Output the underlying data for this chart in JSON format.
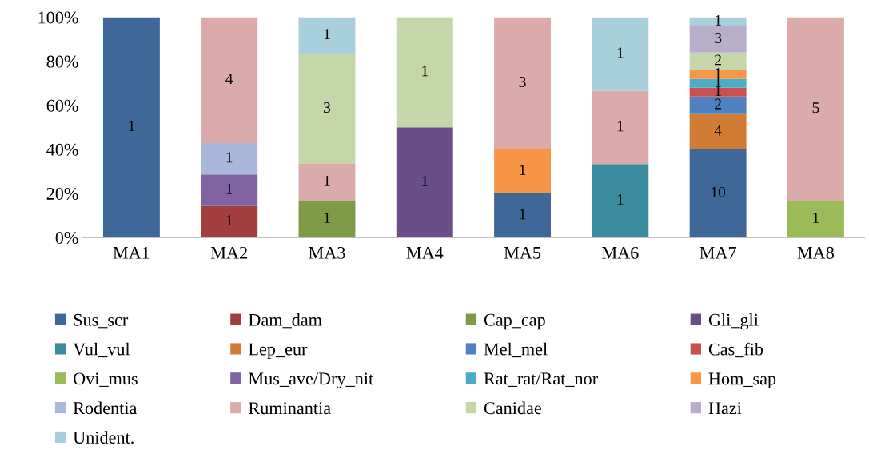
{
  "chart_data": {
    "type": "bar",
    "stacked": true,
    "categories": [
      "MA1",
      "MA2",
      "MA3",
      "MA4",
      "MA5",
      "MA6",
      "MA7",
      "MA8"
    ],
    "ylim": [
      0,
      100
    ],
    "yticks": [
      {
        "value": 0,
        "label": "0%"
      },
      {
        "value": 20,
        "label": "20%"
      },
      {
        "value": 40,
        "label": "40%"
      },
      {
        "value": 60,
        "label": "60%"
      },
      {
        "value": 80,
        "label": "80%"
      },
      {
        "value": 100,
        "label": "100%"
      }
    ],
    "grid": false,
    "legend": "bottom",
    "series": [
      {
        "name": "Sus_scr",
        "color": "#3f6899",
        "values": [
          100,
          null,
          null,
          null,
          20,
          null,
          40,
          null
        ]
      },
      {
        "name": "Dam_dam",
        "color": "#a23f3e",
        "values": [
          null,
          14.3,
          null,
          null,
          null,
          null,
          null,
          null
        ]
      },
      {
        "name": "Cap_cap",
        "color": "#7e9a47",
        "values": [
          null,
          null,
          16.7,
          null,
          null,
          null,
          null,
          null
        ]
      },
      {
        "name": "Gli_gli",
        "color": "#6a4e87",
        "values": [
          null,
          null,
          null,
          50,
          null,
          null,
          null,
          null
        ]
      },
      {
        "name": "Vul_vul",
        "color": "#3a8b9c",
        "values": [
          null,
          null,
          null,
          null,
          null,
          33.3,
          null,
          null
        ]
      },
      {
        "name": "Lep_eur",
        "color": "#d07c34",
        "values": [
          null,
          null,
          null,
          null,
          null,
          null,
          16,
          null
        ]
      },
      {
        "name": "Mel_mel",
        "color": "#4f80c0",
        "values": [
          null,
          null,
          null,
          null,
          null,
          null,
          8,
          null
        ]
      },
      {
        "name": "Cas_fib",
        "color": "#c9504f",
        "values": [
          null,
          null,
          null,
          null,
          null,
          null,
          4,
          null
        ]
      },
      {
        "name": "Ovi_mus",
        "color": "#9bbb59",
        "values": [
          null,
          null,
          null,
          null,
          null,
          null,
          null,
          16.7
        ]
      },
      {
        "name": "Mus_ave/Dry_nit",
        "color": "#8064a2",
        "values": [
          null,
          14.3,
          null,
          null,
          null,
          null,
          null,
          null
        ]
      },
      {
        "name": "Rat_rat/Rat_nor",
        "color": "#4bacc6",
        "values": [
          null,
          null,
          null,
          null,
          null,
          null,
          4,
          null
        ]
      },
      {
        "name": "Hom_sap",
        "color": "#f79646",
        "values": [
          null,
          null,
          null,
          null,
          20,
          null,
          4,
          null
        ]
      },
      {
        "name": "Rodentia",
        "color": "#a9b8d8",
        "values": [
          null,
          14.3,
          null,
          null,
          null,
          null,
          null,
          null
        ]
      },
      {
        "name": "Ruminantia",
        "color": "#dbaaaa",
        "values": [
          null,
          57.1,
          16.7,
          null,
          60,
          33.3,
          null,
          83.3
        ]
      },
      {
        "name": "Canidae",
        "color": "#c5d6a8",
        "values": [
          null,
          null,
          50,
          50,
          null,
          null,
          8,
          null
        ]
      },
      {
        "name": "Hazi",
        "color": "#b8adcb",
        "values": [
          null,
          null,
          null,
          null,
          null,
          null,
          12,
          null
        ]
      },
      {
        "name": "Unident.",
        "color": "#a8cfdc",
        "values": [
          null,
          null,
          16.6,
          null,
          null,
          33.4,
          4,
          null
        ]
      }
    ],
    "annotations": [
      "1",
      "1",
      "1",
      "1",
      "4",
      "1",
      "1",
      "3",
      "1",
      "1",
      "1",
      "1",
      "1",
      "3",
      "1",
      "1",
      "1",
      "10",
      "4",
      "2",
      "1",
      "1",
      "1",
      "2",
      "3",
      "1",
      "1",
      "5"
    ]
  }
}
